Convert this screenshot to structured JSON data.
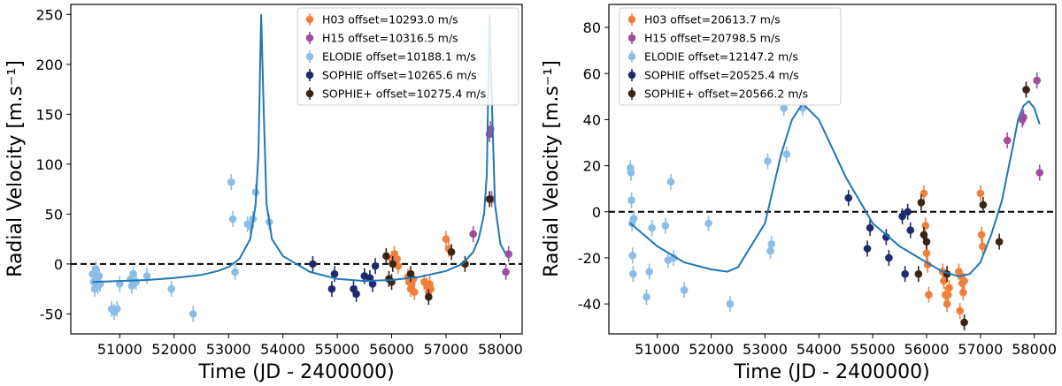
{
  "chart_data": [
    {
      "type": "scatter",
      "xlabel": "Time (JD - 2400000)",
      "ylabel": "Radial Velocity [m.s⁻¹]",
      "xlim": [
        50100,
        58400
      ],
      "ylim": [
        -70,
        260
      ],
      "xticks": [
        51000,
        52000,
        53000,
        54000,
        55000,
        56000,
        57000,
        58000
      ],
      "yticks": [
        -50,
        0,
        50,
        100,
        150,
        200,
        250
      ],
      "legend_position": "top-right",
      "series": [
        {
          "name": "H03",
          "label": "H03 offset=10293.0 m/s",
          "color": "#f07f3c",
          "points": [
            [
              56000,
              5
            ],
            [
              56050,
              10
            ],
            [
              56100,
              5
            ],
            [
              56120,
              -2
            ],
            [
              56300,
              -13
            ],
            [
              56320,
              -18
            ],
            [
              56350,
              -25
            ],
            [
              56370,
              -20
            ],
            [
              56400,
              -15
            ],
            [
              56420,
              -28
            ],
            [
              56600,
              -18
            ],
            [
              56650,
              -22
            ],
            [
              56700,
              -20
            ],
            [
              56680,
              -28
            ],
            [
              56720,
              -25
            ],
            [
              57000,
              25
            ],
            [
              57050,
              15
            ]
          ]
        },
        {
          "name": "H15",
          "label": "H15 offset=10316.5 m/s",
          "color": "#a04d9e",
          "points": [
            [
              57500,
              30
            ],
            [
              57800,
              130
            ],
            [
              57820,
              135
            ],
            [
              57840,
              65
            ],
            [
              58100,
              -8
            ],
            [
              58150,
              10
            ]
          ]
        },
        {
          "name": "ELODIE",
          "label": "ELODIE offset=10188.1 m/s",
          "color": "#8bbde6",
          "points": [
            [
              50500,
              -10
            ],
            [
              50520,
              -18
            ],
            [
              50540,
              -25
            ],
            [
              50560,
              -5
            ],
            [
              50580,
              -15
            ],
            [
              50600,
              -22
            ],
            [
              50620,
              -12
            ],
            [
              50640,
              -20
            ],
            [
              50850,
              -45
            ],
            [
              50900,
              -48
            ],
            [
              50950,
              -45
            ],
            [
              51000,
              -20
            ],
            [
              51200,
              -15
            ],
            [
              51220,
              -22
            ],
            [
              51250,
              -10
            ],
            [
              51300,
              -18
            ],
            [
              51500,
              -12
            ],
            [
              51950,
              -25
            ],
            [
              52350,
              -50
            ],
            [
              53050,
              82
            ],
            [
              53080,
              45
            ],
            [
              53120,
              -8
            ],
            [
              53350,
              40
            ],
            [
              53400,
              38
            ],
            [
              53450,
              45
            ],
            [
              53500,
              72
            ],
            [
              53750,
              42
            ]
          ]
        },
        {
          "name": "SOPHIE",
          "label": "SOPHIE offset=10265.6 m/s",
          "color": "#1f2a6e",
          "points": [
            [
              54550,
              0
            ],
            [
              54900,
              -25
            ],
            [
              54950,
              -10
            ],
            [
              55300,
              -25
            ],
            [
              55350,
              -30
            ],
            [
              55500,
              -12
            ],
            [
              55600,
              -14
            ],
            [
              55650,
              -20
            ],
            [
              55700,
              -2
            ]
          ]
        },
        {
          "name": "SOPHIE+",
          "label": "SOPHIE+ offset=10275.4 m/s",
          "color": "#3a2418",
          "points": [
            [
              55900,
              8
            ],
            [
              55950,
              -15
            ],
            [
              56000,
              -18
            ],
            [
              56020,
              0
            ],
            [
              56350,
              -10
            ],
            [
              56680,
              -33
            ],
            [
              57100,
              12
            ],
            [
              57350,
              0
            ],
            [
              57800,
              65
            ]
          ]
        }
      ],
      "model": {
        "x": [
          50500,
          51000,
          51500,
          52000,
          52500,
          52800,
          53000,
          53200,
          53400,
          53500,
          53550,
          53600,
          53650,
          53700,
          53800,
          54000,
          54500,
          55000,
          55500,
          56000,
          56500,
          57000,
          57300,
          57500,
          57600,
          57700,
          57750,
          57800,
          57850,
          57900,
          58000,
          58100
        ],
        "y": [
          -18,
          -17,
          -16,
          -14,
          -11,
          -7,
          -3,
          5,
          25,
          60,
          110,
          250,
          150,
          60,
          25,
          8,
          -8,
          -15,
          -17,
          -16,
          -13,
          -7,
          0,
          12,
          25,
          50,
          90,
          250,
          150,
          60,
          20,
          10
        ]
      }
    },
    {
      "type": "scatter",
      "xlabel": "Time (JD - 2400000)",
      "ylabel": "Radial Velocity [m.s⁻¹]",
      "xlim": [
        50100,
        58400
      ],
      "ylim": [
        -53,
        90
      ],
      "xticks": [
        51000,
        52000,
        53000,
        54000,
        55000,
        56000,
        57000,
        58000
      ],
      "yticks": [
        -40,
        -20,
        0,
        20,
        40,
        60,
        80
      ],
      "legend_position": "top-left",
      "series": [
        {
          "name": "H03",
          "label": "H03 offset=20613.7 m/s",
          "color": "#f07f3c",
          "points": [
            [
              55950,
              8
            ],
            [
              55980,
              -6
            ],
            [
              56000,
              -18
            ],
            [
              56020,
              -23
            ],
            [
              56040,
              -36
            ],
            [
              56300,
              -26
            ],
            [
              56320,
              -30
            ],
            [
              56350,
              -36
            ],
            [
              56380,
              -40
            ],
            [
              56400,
              -36
            ],
            [
              56420,
              -33
            ],
            [
              56600,
              -26
            ],
            [
              56640,
              -28
            ],
            [
              56660,
              -31
            ],
            [
              56680,
              -35
            ],
            [
              56700,
              -30
            ],
            [
              56620,
              -43
            ],
            [
              57000,
              8
            ],
            [
              57020,
              -10
            ],
            [
              57040,
              -15
            ]
          ]
        },
        {
          "name": "H15",
          "label": "H15 offset=20798.5 m/s",
          "color": "#a04d9e",
          "points": [
            [
              57500,
              31
            ],
            [
              57780,
              40
            ],
            [
              57800,
              41
            ],
            [
              57850,
              53
            ],
            [
              58050,
              57
            ],
            [
              58100,
              17
            ]
          ]
        },
        {
          "name": "ELODIE",
          "label": "ELODIE offset=12147.2 m/s",
          "color": "#8bbde6",
          "points": [
            [
              50500,
              19
            ],
            [
              50510,
              17
            ],
            [
              50520,
              5
            ],
            [
              50530,
              -5
            ],
            [
              50540,
              -19
            ],
            [
              50550,
              -27
            ],
            [
              50560,
              -3
            ],
            [
              50800,
              -37
            ],
            [
              50850,
              -26
            ],
            [
              50900,
              -7
            ],
            [
              51150,
              -6
            ],
            [
              51200,
              -21
            ],
            [
              51250,
              13
            ],
            [
              51300,
              -20
            ],
            [
              51500,
              -34
            ],
            [
              51950,
              -5
            ],
            [
              52350,
              -40
            ],
            [
              53050,
              22
            ],
            [
              53100,
              -17
            ],
            [
              53120,
              -14
            ],
            [
              53350,
              45
            ],
            [
              53400,
              25
            ],
            [
              53700,
              45
            ]
          ]
        },
        {
          "name": "SOPHIE",
          "label": "SOPHIE offset=20525.4 m/s",
          "color": "#1f2a6e",
          "points": [
            [
              54550,
              6
            ],
            [
              54900,
              -16
            ],
            [
              54950,
              -7
            ],
            [
              55250,
              -11
            ],
            [
              55300,
              -20
            ],
            [
              55550,
              -2
            ],
            [
              55600,
              -27
            ],
            [
              55650,
              0
            ],
            [
              55700,
              -8
            ]
          ]
        },
        {
          "name": "SOPHIE+",
          "label": "SOPHIE+ offset=20566.2 m/s",
          "color": "#3a2418",
          "points": [
            [
              55850,
              -27
            ],
            [
              55900,
              4
            ],
            [
              55950,
              -10
            ],
            [
              56000,
              -13
            ],
            [
              56380,
              -27
            ],
            [
              56700,
              -48
            ],
            [
              57050,
              3
            ],
            [
              57350,
              -13
            ],
            [
              57850,
              53
            ]
          ]
        }
      ],
      "model": {
        "x": [
          50500,
          51000,
          51500,
          52000,
          52300,
          52500,
          53000,
          53300,
          53500,
          53700,
          54000,
          54500,
          55000,
          55500,
          56000,
          56300,
          56600,
          56800,
          57000,
          57200,
          57400,
          57600,
          57700,
          57800,
          57900,
          58000,
          58100
        ],
        "y": [
          -5,
          -15,
          -22,
          -25,
          -26,
          -24,
          -5,
          25,
          40,
          47,
          40,
          15,
          -5,
          -15,
          -22,
          -26,
          -28,
          -27,
          -22,
          -10,
          5,
          28,
          40,
          46,
          48,
          45,
          38
        ]
      }
    }
  ]
}
